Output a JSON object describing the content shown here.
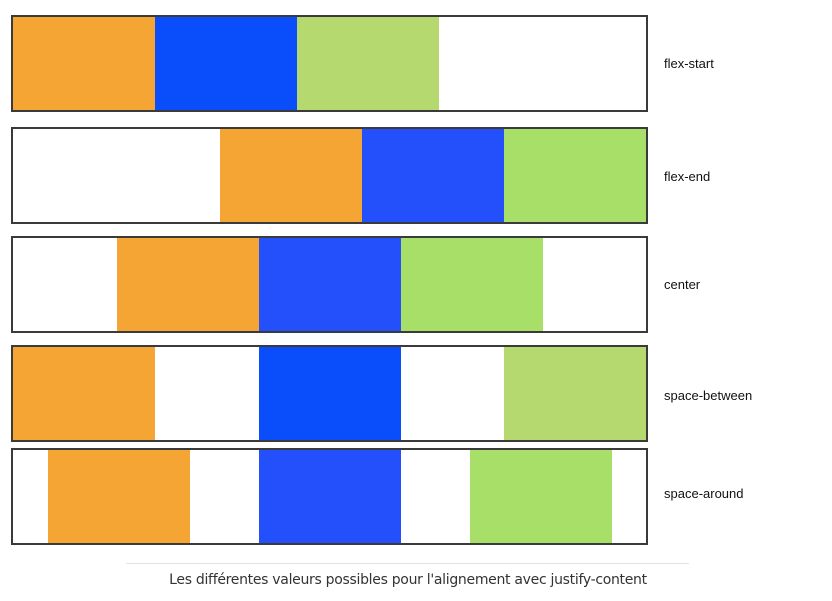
{
  "colors": {
    "orange": "#f5a533",
    "blue": "#0a4dfa",
    "blue_alt": "#2450fb",
    "green_muted": "#b5d86f",
    "green_bright": "#a8df68",
    "border": "#3a3a3a"
  },
  "rows": [
    {
      "label": "flex-start",
      "justify": "flex-start",
      "item_colors": [
        "#f5a533",
        "#0a4dfa",
        "#b5d86f"
      ]
    },
    {
      "label": "flex-end",
      "justify": "flex-end",
      "item_colors": [
        "#f5a533",
        "#2450fb",
        "#a8df68"
      ]
    },
    {
      "label": "center",
      "justify": "center",
      "item_colors": [
        "#f5a533",
        "#2450fb",
        "#a8df68"
      ]
    },
    {
      "label": "space-between",
      "justify": "space-between",
      "item_colors": [
        "#f5a533",
        "#0a4dfa",
        "#b5d86f"
      ]
    },
    {
      "label": "space-around",
      "justify": "space-around",
      "item_colors": [
        "#f5a533",
        "#2450fb",
        "#a8df68"
      ]
    }
  ],
  "caption": "Les différentes valeurs possibles pour l'alignement avec justify-content"
}
